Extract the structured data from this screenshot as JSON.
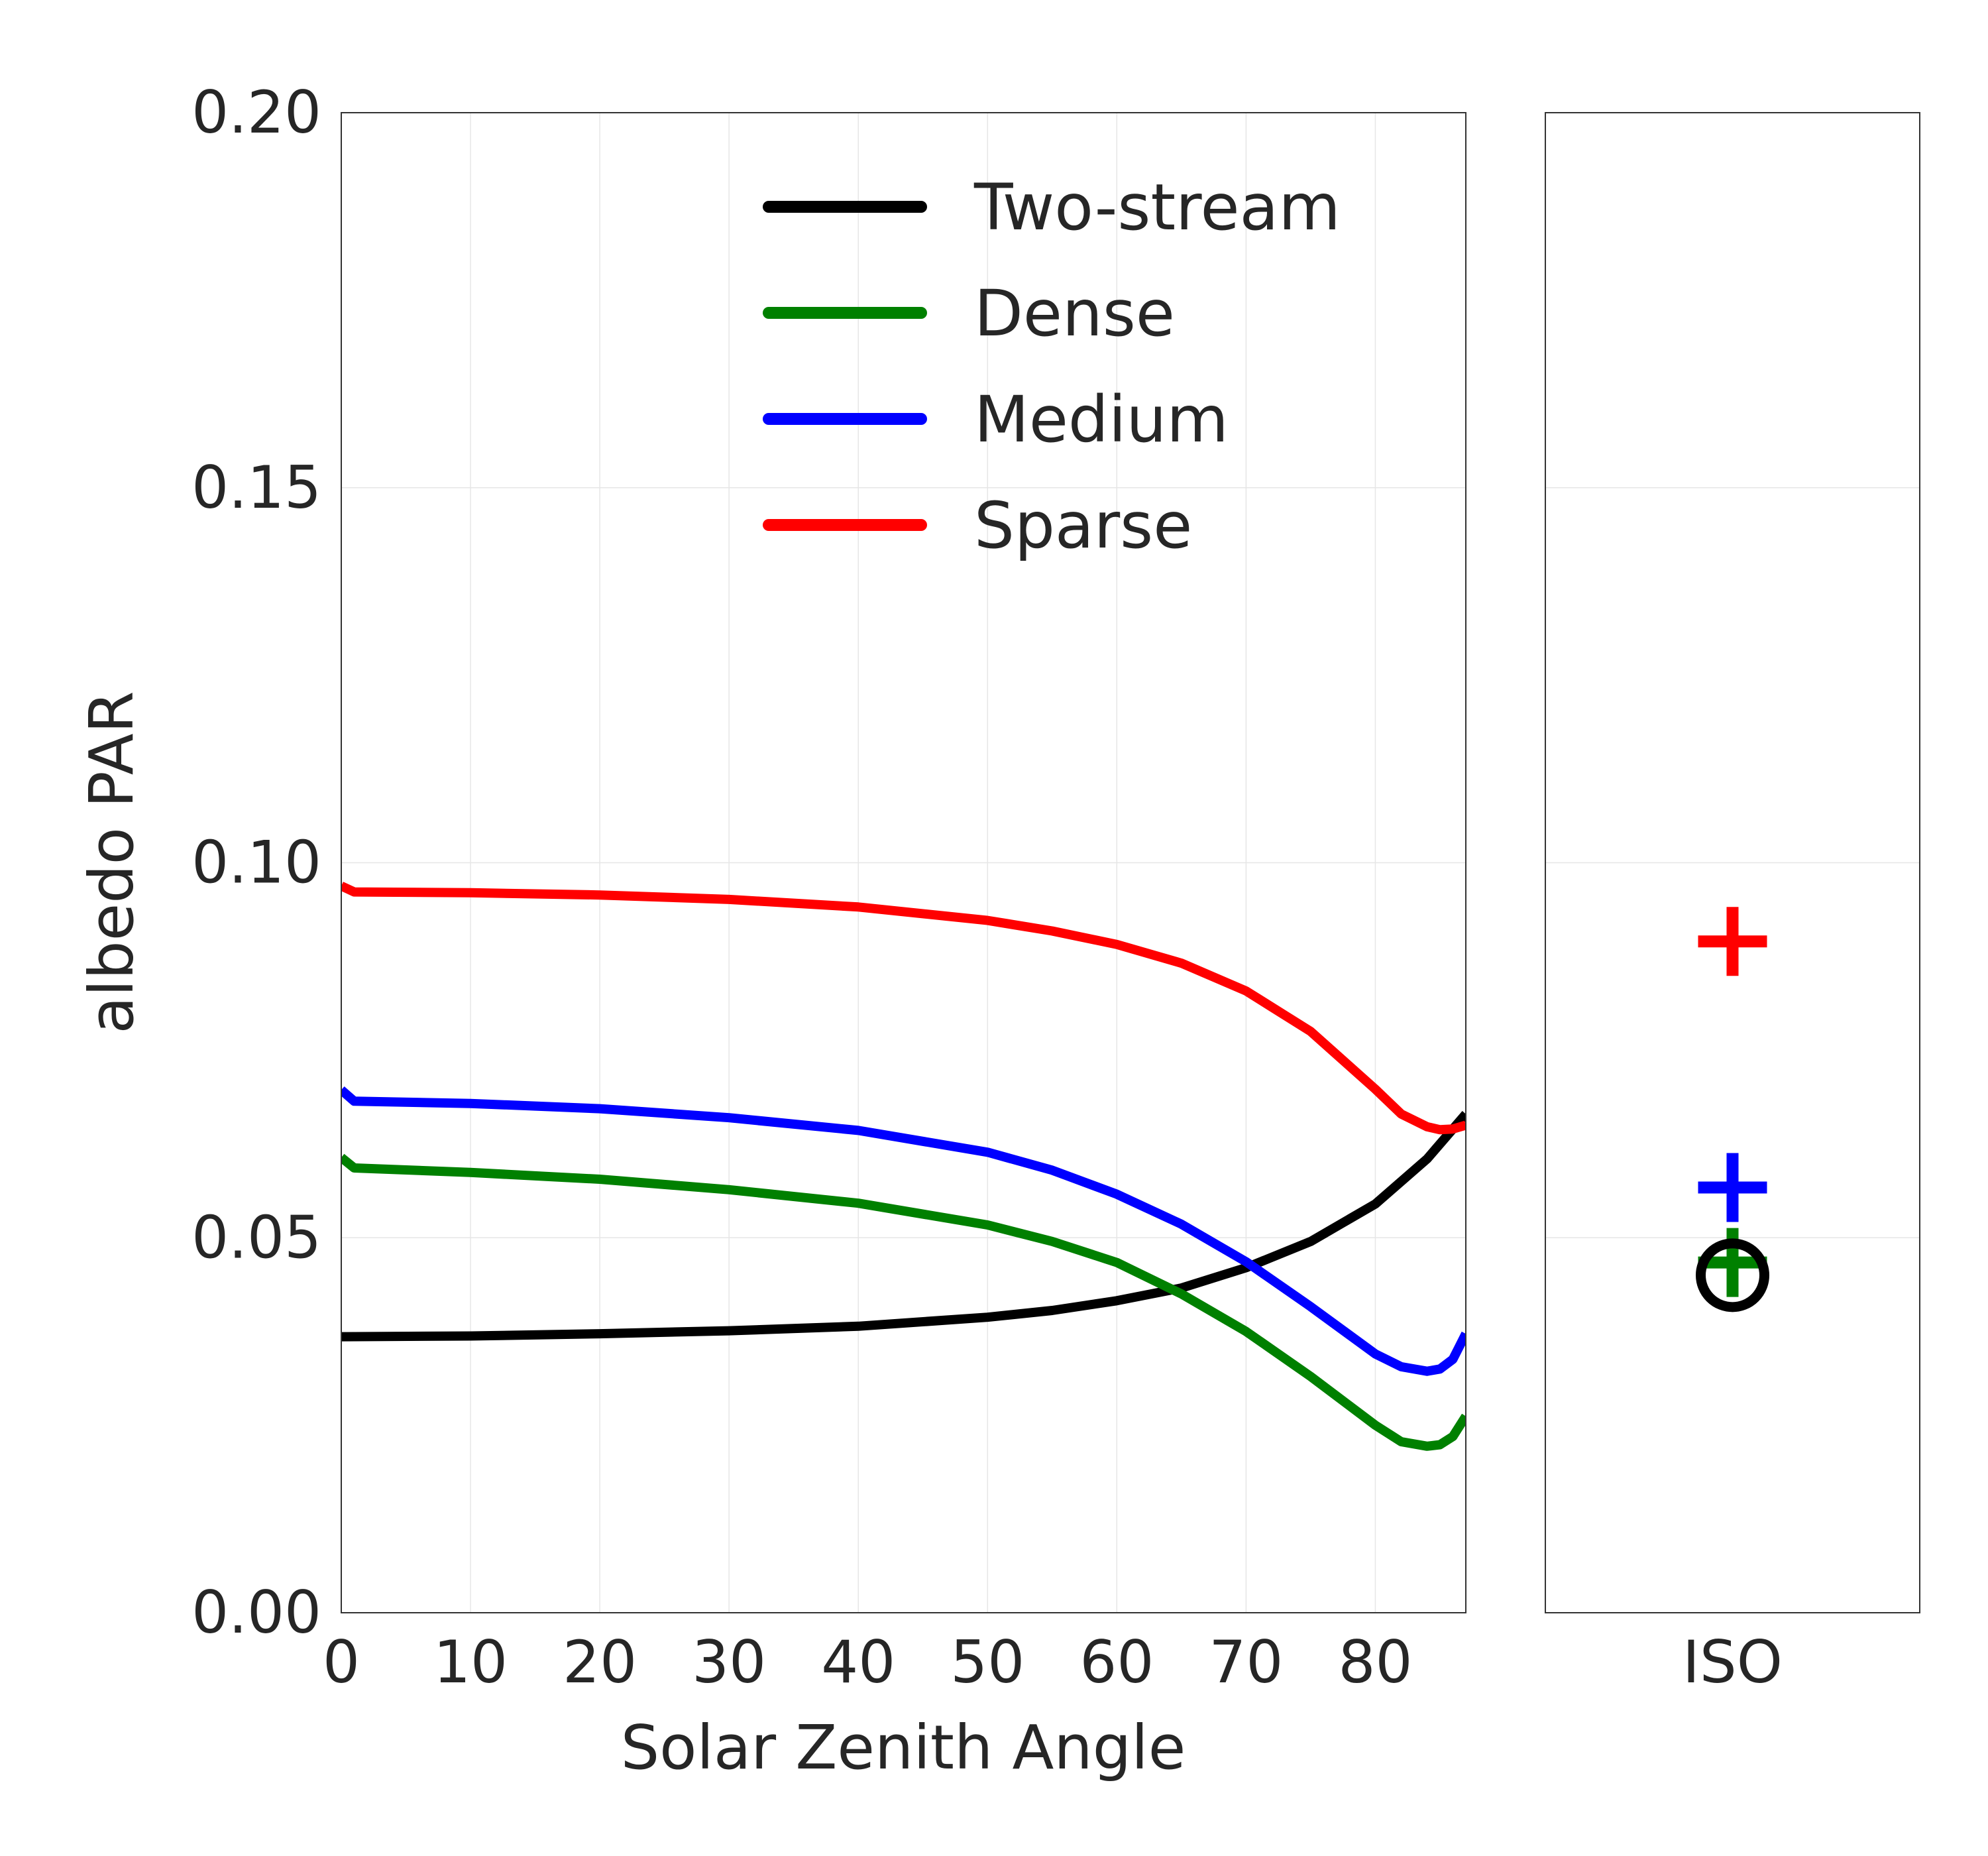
{
  "chart_data": [
    {
      "type": "line",
      "panel": "main",
      "xlabel": "Solar Zenith Angle",
      "ylabel": "albedo PAR",
      "xlim": [
        0,
        87
      ],
      "ylim": [
        0.0,
        0.2
      ],
      "xticks": [
        "0",
        "10",
        "20",
        "30",
        "40",
        "50",
        "60",
        "70",
        "80"
      ],
      "yticks": [
        "0.00",
        "0.05",
        "0.10",
        "0.15",
        "0.20"
      ],
      "grid": true,
      "legend": "top-right",
      "series": [
        {
          "name": "Two-stream",
          "color": "#000000",
          "x": [
            0,
            10,
            20,
            30,
            40,
            50,
            55,
            60,
            65,
            70,
            75,
            80,
            84,
            87
          ],
          "y": [
            0.0368,
            0.0369,
            0.0372,
            0.0376,
            0.0382,
            0.0394,
            0.0403,
            0.0416,
            0.0433,
            0.046,
            0.0495,
            0.0545,
            0.0605,
            0.0665
          ]
        },
        {
          "name": "Dense",
          "color": "#008000",
          "x": [
            0,
            1,
            10,
            20,
            30,
            40,
            50,
            55,
            60,
            65,
            70,
            75,
            80,
            82,
            84,
            85,
            86,
            87
          ],
          "y": [
            0.0607,
            0.0593,
            0.0587,
            0.0578,
            0.0564,
            0.0546,
            0.0517,
            0.0495,
            0.0467,
            0.0425,
            0.0375,
            0.0315,
            0.025,
            0.0228,
            0.0222,
            0.0224,
            0.0235,
            0.0262
          ]
        },
        {
          "name": "Medium",
          "color": "#0000ff",
          "x": [
            0,
            1,
            10,
            20,
            30,
            40,
            50,
            55,
            60,
            65,
            70,
            75,
            80,
            82,
            84,
            85,
            86,
            87
          ],
          "y": [
            0.0697,
            0.0682,
            0.0679,
            0.0672,
            0.066,
            0.0643,
            0.0614,
            0.059,
            0.0558,
            0.0518,
            0.0468,
            0.0408,
            0.0345,
            0.0328,
            0.0322,
            0.0325,
            0.0338,
            0.0372
          ]
        },
        {
          "name": "Sparse",
          "color": "#ff0000",
          "x": [
            0,
            1,
            10,
            20,
            30,
            40,
            50,
            55,
            60,
            65,
            70,
            75,
            80,
            82,
            84,
            85,
            86,
            87
          ],
          "y": [
            0.0969,
            0.0961,
            0.096,
            0.0957,
            0.0951,
            0.0941,
            0.0923,
            0.0909,
            0.0891,
            0.0866,
            0.0829,
            0.0775,
            0.0698,
            0.0665,
            0.0648,
            0.0644,
            0.0645,
            0.065
          ]
        }
      ]
    },
    {
      "type": "scatter",
      "panel": "side",
      "categories": [
        "ISO"
      ],
      "ylim": [
        0.0,
        0.2
      ],
      "grid": true,
      "points": [
        {
          "series": "Sparse",
          "marker": "plus",
          "color": "#ff0000",
          "y": 0.0895
        },
        {
          "series": "Medium",
          "marker": "plus",
          "color": "#0000ff",
          "y": 0.0567
        },
        {
          "series": "Dense",
          "marker": "plus",
          "color": "#008000",
          "y": 0.0467
        },
        {
          "series": "Two-stream",
          "marker": "circle",
          "color": "#000000",
          "y": 0.045
        }
      ]
    }
  ]
}
